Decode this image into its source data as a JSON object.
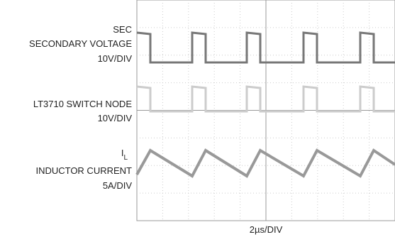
{
  "labels": {
    "secondary": {
      "name": "SEC",
      "description": "SECONDARY VOLTAGE",
      "scale": "10V/DIV"
    },
    "switch_node": {
      "description": "LT3710 SWITCH NODE",
      "scale": "10V/DIV"
    },
    "inductor": {
      "name": "I",
      "subscript": "L",
      "description": "INDUCTOR CURRENT",
      "scale": "5A/DIV"
    },
    "timebase": "2µs/DIV"
  }
}
